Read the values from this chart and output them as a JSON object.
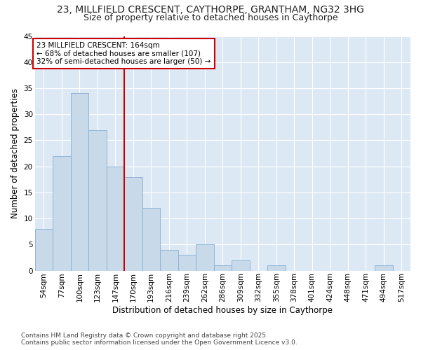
{
  "title1": "23, MILLFIELD CRESCENT, CAYTHORPE, GRANTHAM, NG32 3HG",
  "title2": "Size of property relative to detached houses in Caythorpe",
  "xlabel": "Distribution of detached houses by size in Caythorpe",
  "ylabel": "Number of detached properties",
  "categories": [
    "54sqm",
    "77sqm",
    "100sqm",
    "123sqm",
    "147sqm",
    "170sqm",
    "193sqm",
    "216sqm",
    "239sqm",
    "262sqm",
    "286sqm",
    "309sqm",
    "332sqm",
    "355sqm",
    "378sqm",
    "401sqm",
    "424sqm",
    "448sqm",
    "471sqm",
    "494sqm",
    "517sqm"
  ],
  "values": [
    8,
    22,
    34,
    27,
    20,
    18,
    12,
    4,
    3,
    5,
    1,
    2,
    0,
    1,
    0,
    0,
    0,
    0,
    0,
    1,
    0
  ],
  "bar_color": "#c8d9ea",
  "bar_edge_color": "#88afd0",
  "vline_color": "#cc0000",
  "annotation_title": "23 MILLFIELD CRESCENT: 164sqm",
  "annotation_line1": "← 68% of detached houses are smaller (107)",
  "annotation_line2": "32% of semi-detached houses are larger (50) →",
  "box_color": "#cc0000",
  "ylim": [
    0,
    45
  ],
  "yticks": [
    0,
    5,
    10,
    15,
    20,
    25,
    30,
    35,
    40,
    45
  ],
  "footer1": "Contains HM Land Registry data © Crown copyright and database right 2025.",
  "footer2": "Contains public sector information licensed under the Open Government Licence v3.0.",
  "fig_bg_color": "#ffffff",
  "plot_bg_color": "#dce9f5",
  "grid_color": "#ffffff",
  "title1_fontsize": 10,
  "title2_fontsize": 9,
  "axis_label_fontsize": 8.5,
  "tick_fontsize": 7.5,
  "footer_fontsize": 6.5,
  "annot_fontsize": 7.5
}
